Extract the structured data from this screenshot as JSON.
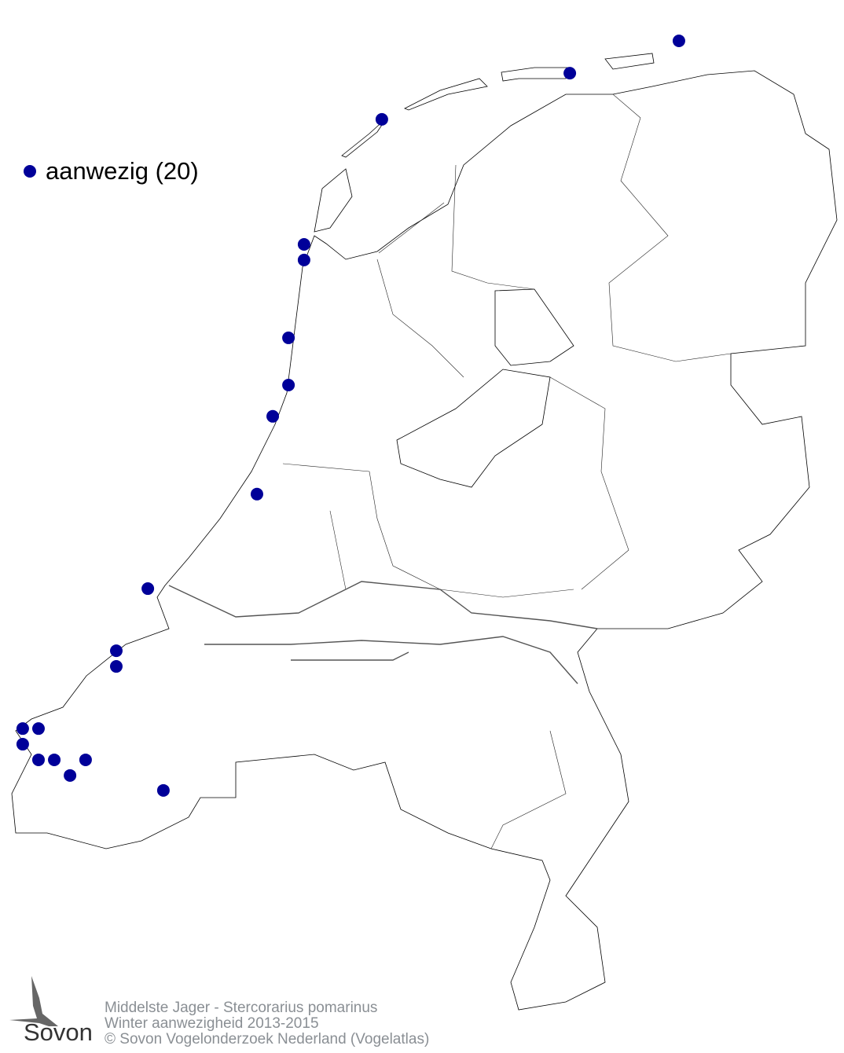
{
  "legend": {
    "label": "aanwezig (20)",
    "color": "#000099"
  },
  "footer": {
    "line1": "Middelste Jager - Stercorarius pomarinus",
    "line2": "Winter aanwezigheid 2013-2015",
    "line3": "© Sovon Vogelonderzoek Nederland (Vogelatlas)"
  },
  "logo": {
    "text": "Sovon"
  },
  "observations": [
    {
      "lon": 6.568,
      "lat": 53.54
    },
    {
      "lon": 6.042,
      "lat": 53.447
    },
    {
      "lon": 5.136,
      "lat": 53.314
    },
    {
      "lon": 4.761,
      "lat": 52.954
    },
    {
      "lon": 4.761,
      "lat": 52.909
    },
    {
      "lon": 4.686,
      "lat": 52.685
    },
    {
      "lon": 4.686,
      "lat": 52.549
    },
    {
      "lon": 4.61,
      "lat": 52.459
    },
    {
      "lon": 4.534,
      "lat": 52.235
    },
    {
      "lon": 4.008,
      "lat": 51.963
    },
    {
      "lon": 3.856,
      "lat": 51.784
    },
    {
      "lon": 3.856,
      "lat": 51.739
    },
    {
      "lon": 3.405,
      "lat": 51.56
    },
    {
      "lon": 3.481,
      "lat": 51.56
    },
    {
      "lon": 3.405,
      "lat": 51.515
    },
    {
      "lon": 3.481,
      "lat": 51.47
    },
    {
      "lon": 3.557,
      "lat": 51.47
    },
    {
      "lon": 3.708,
      "lat": 51.47
    },
    {
      "lon": 3.633,
      "lat": 51.425
    },
    {
      "lon": 4.083,
      "lat": 51.382
    }
  ]
}
